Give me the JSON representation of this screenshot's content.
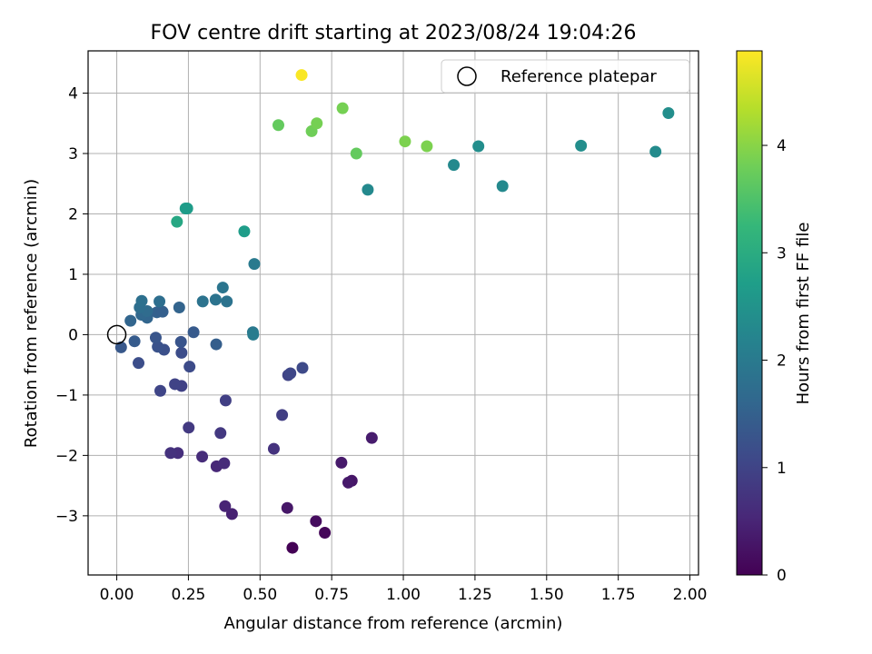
{
  "chart_data": {
    "type": "scatter",
    "title": "FOV centre drift starting at 2023/08/24 19:04:26",
    "xlabel": "Angular distance from reference (arcmin)",
    "ylabel": "Rotation from reference (arcmin)",
    "xlim": [
      -0.1,
      2.03
    ],
    "ylim": [
      -3.98,
      4.7
    ],
    "xticks": [
      "0.00",
      "0.25",
      "0.50",
      "0.75",
      "1.00",
      "1.25",
      "1.50",
      "1.75",
      "2.00"
    ],
    "xtick_values": [
      0,
      0.25,
      0.5,
      0.75,
      1.0,
      1.25,
      1.5,
      1.75,
      2.0
    ],
    "yticks": [
      "−3",
      "−2",
      "−1",
      "0",
      "1",
      "2",
      "3",
      "4"
    ],
    "ytick_values": [
      -3,
      -2,
      -1,
      0,
      1,
      2,
      3,
      4
    ],
    "grid": true,
    "colormap": "viridis",
    "colorbar": {
      "label": "Hours from first FF file",
      "range": [
        0,
        4.88
      ],
      "ticks": [
        "0",
        "1",
        "2",
        "3",
        "4"
      ],
      "tick_values": [
        0,
        1,
        2,
        3,
        4
      ]
    },
    "legend": {
      "position": "top-right",
      "entries": [
        "Reference platepar"
      ]
    },
    "reference_point": {
      "x": 0,
      "y": 0
    },
    "points": [
      {
        "x": 0.613,
        "y": -3.53,
        "t": 0.02
      },
      {
        "x": 0.726,
        "y": -3.28,
        "t": 0.08
      },
      {
        "x": 0.695,
        "y": -3.09,
        "t": 0.15
      },
      {
        "x": 0.595,
        "y": -2.87,
        "t": 0.3
      },
      {
        "x": 0.82,
        "y": -2.42,
        "t": 0.28
      },
      {
        "x": 0.808,
        "y": -2.45,
        "t": 0.33
      },
      {
        "x": 0.784,
        "y": -2.12,
        "t": 0.35
      },
      {
        "x": 0.89,
        "y": -1.71,
        "t": 0.38
      },
      {
        "x": 0.402,
        "y": -2.97,
        "t": 0.45
      },
      {
        "x": 0.378,
        "y": -2.84,
        "t": 0.5
      },
      {
        "x": 0.348,
        "y": -2.18,
        "t": 0.55
      },
      {
        "x": 0.375,
        "y": -2.13,
        "t": 0.6
      },
      {
        "x": 0.298,
        "y": -2.02,
        "t": 0.62
      },
      {
        "x": 0.213,
        "y": -1.96,
        "t": 0.66
      },
      {
        "x": 0.188,
        "y": -1.96,
        "t": 0.7
      },
      {
        "x": 0.548,
        "y": -1.89,
        "t": 0.72
      },
      {
        "x": 0.362,
        "y": -1.63,
        "t": 0.8
      },
      {
        "x": 0.251,
        "y": -1.54,
        "t": 0.83
      },
      {
        "x": 0.577,
        "y": -1.33,
        "t": 0.9
      },
      {
        "x": 0.38,
        "y": -1.09,
        "t": 0.92
      },
      {
        "x": 0.226,
        "y": -0.85,
        "t": 0.95
      },
      {
        "x": 0.203,
        "y": -0.82,
        "t": 0.98
      },
      {
        "x": 0.152,
        "y": -0.93,
        "t": 1.02
      },
      {
        "x": 0.598,
        "y": -0.67,
        "t": 1.0
      },
      {
        "x": 0.606,
        "y": -0.64,
        "t": 1.05
      },
      {
        "x": 0.648,
        "y": -0.55,
        "t": 1.1
      },
      {
        "x": 0.254,
        "y": -0.53,
        "t": 1.12
      },
      {
        "x": 0.076,
        "y": -0.47,
        "t": 1.18
      },
      {
        "x": 0.226,
        "y": -0.3,
        "t": 1.15
      },
      {
        "x": 0.165,
        "y": -0.25,
        "t": 1.2
      },
      {
        "x": 0.143,
        "y": -0.2,
        "t": 1.25
      },
      {
        "x": 0.224,
        "y": -0.12,
        "t": 1.28
      },
      {
        "x": 0.136,
        "y": -0.05,
        "t": 1.3
      },
      {
        "x": 0.347,
        "y": -0.16,
        "t": 1.45
      },
      {
        "x": 0.015,
        "y": -0.21,
        "t": 1.35
      },
      {
        "x": 0.062,
        "y": -0.11,
        "t": 1.4
      },
      {
        "x": 0.268,
        "y": 0.04,
        "t": 1.38
      },
      {
        "x": 0.475,
        "y": 0.04,
        "t": 1.95
      },
      {
        "x": 0.476,
        "y": 0.0,
        "t": 2.05
      },
      {
        "x": 0.048,
        "y": 0.23,
        "t": 1.6
      },
      {
        "x": 0.106,
        "y": 0.28,
        "t": 1.6
      },
      {
        "x": 0.086,
        "y": 0.33,
        "t": 1.62
      },
      {
        "x": 0.14,
        "y": 0.37,
        "t": 1.5
      },
      {
        "x": 0.16,
        "y": 0.38,
        "t": 1.48
      },
      {
        "x": 0.106,
        "y": 0.39,
        "t": 1.7
      },
      {
        "x": 0.08,
        "y": 0.45,
        "t": 1.75
      },
      {
        "x": 0.218,
        "y": 0.45,
        "t": 1.55
      },
      {
        "x": 0.087,
        "y": 0.56,
        "t": 1.8
      },
      {
        "x": 0.149,
        "y": 0.55,
        "t": 1.75
      },
      {
        "x": 0.3,
        "y": 0.55,
        "t": 1.85
      },
      {
        "x": 0.345,
        "y": 0.58,
        "t": 1.85
      },
      {
        "x": 0.384,
        "y": 0.55,
        "t": 1.85
      },
      {
        "x": 0.37,
        "y": 0.78,
        "t": 1.9
      },
      {
        "x": 0.48,
        "y": 1.17,
        "t": 2.0
      },
      {
        "x": 0.445,
        "y": 1.71,
        "t": 2.7
      },
      {
        "x": 0.21,
        "y": 1.87,
        "t": 2.9
      },
      {
        "x": 0.24,
        "y": 2.09,
        "t": 2.7
      },
      {
        "x": 0.246,
        "y": 2.09,
        "t": 2.68
      },
      {
        "x": 0.876,
        "y": 2.4,
        "t": 2.3
      },
      {
        "x": 1.346,
        "y": 2.46,
        "t": 2.3
      },
      {
        "x": 1.176,
        "y": 2.81,
        "t": 2.3
      },
      {
        "x": 1.88,
        "y": 3.03,
        "t": 2.35
      },
      {
        "x": 1.262,
        "y": 3.12,
        "t": 2.4
      },
      {
        "x": 1.62,
        "y": 3.13,
        "t": 2.4
      },
      {
        "x": 1.925,
        "y": 3.67,
        "t": 2.4
      },
      {
        "x": 0.836,
        "y": 3.0,
        "t": 3.7
      },
      {
        "x": 1.082,
        "y": 3.12,
        "t": 3.9
      },
      {
        "x": 1.006,
        "y": 3.2,
        "t": 3.9
      },
      {
        "x": 0.68,
        "y": 3.37,
        "t": 3.8
      },
      {
        "x": 0.698,
        "y": 3.5,
        "t": 3.85
      },
      {
        "x": 0.564,
        "y": 3.47,
        "t": 3.7
      },
      {
        "x": 0.788,
        "y": 3.75,
        "t": 3.85
      },
      {
        "x": 0.645,
        "y": 4.3,
        "t": 4.85
      }
    ]
  }
}
